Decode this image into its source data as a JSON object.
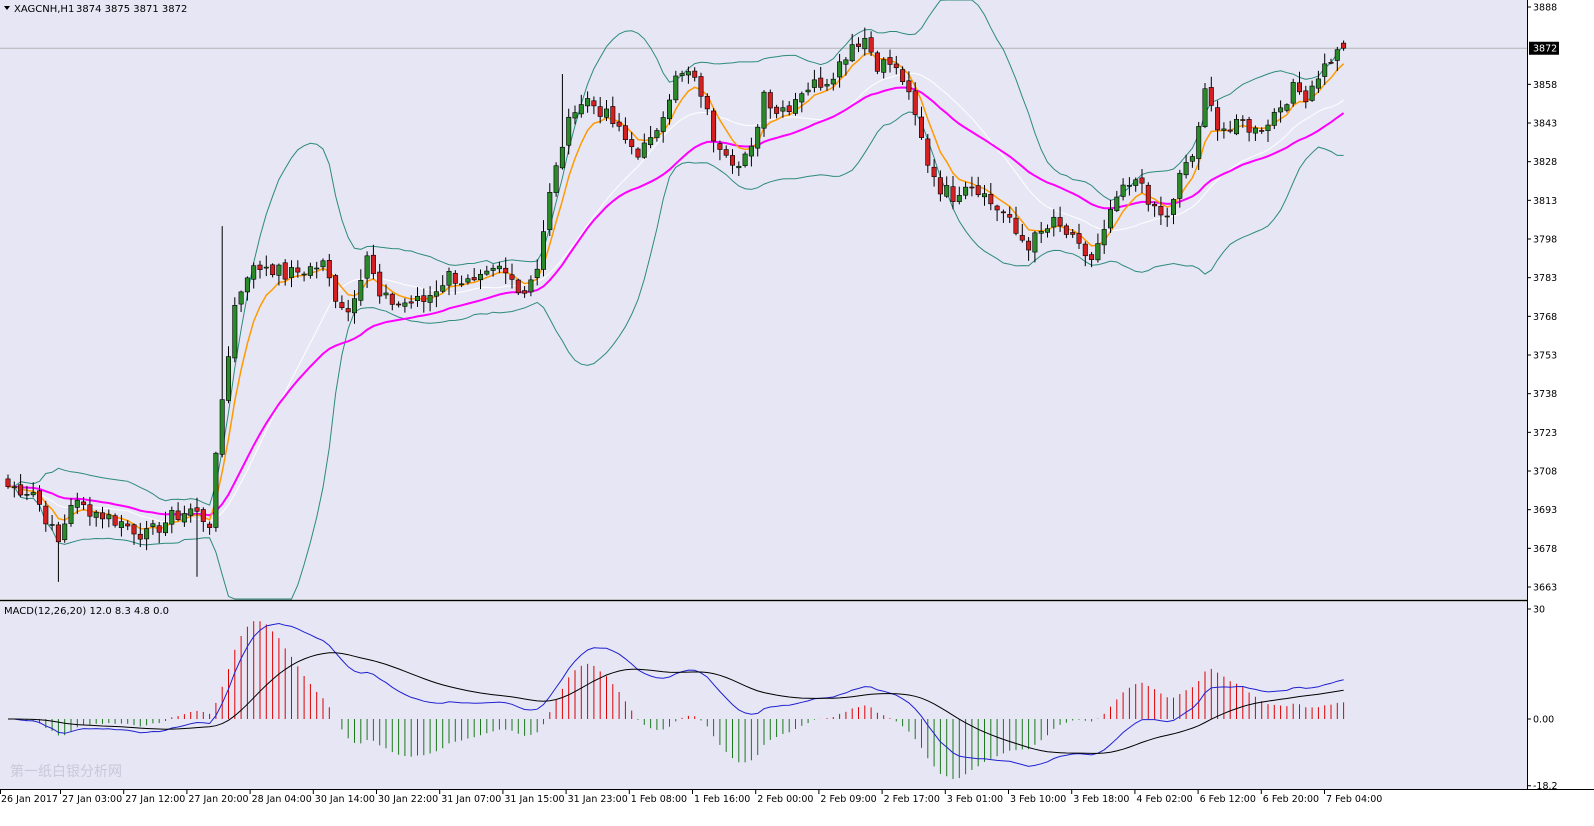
{
  "header": {
    "symbol_label": "XAGCNH,H1",
    "ohlc_text": "3874 3875 3871 3872",
    "current_price": "3872"
  },
  "macd_header": "MACD(12,26,20) 12.0 8.3 4.8 0.0",
  "watermark": "第一纸白银分析网",
  "colors": {
    "background": "#e6e6f5",
    "bull": "#2a8a2a",
    "bear": "#d42020",
    "wick": "#000000",
    "ma_fast": "#ff9a00",
    "ma_slow": "#ff00ff",
    "ma_mid": "#ffffff",
    "bollinger": "#2d8a7a",
    "macd_main": "#2020d0",
    "macd_signal": "#000000",
    "hist_pos": "#e00000",
    "hist_neg": "#1a7a1a"
  },
  "chart_data": [
    {
      "type": "candlestick",
      "name": "price",
      "y_axis_ticks": [
        "3888",
        "3872",
        "3858",
        "3843",
        "3828",
        "3813",
        "3798",
        "3783",
        "3768",
        "3753",
        "3738",
        "3723",
        "3708",
        "3693",
        "3678",
        "3663"
      ],
      "x_axis_ticks": [
        "26 Jan 2017",
        "27 Jan 03:00",
        "27 Jan 12:00",
        "27 Jan 20:00",
        "28 Jan 04:00",
        "30 Jan 14:00",
        "30 Jan 22:00",
        "31 Jan 07:00",
        "31 Jan 15:00",
        "31 Jan 23:00",
        "1 Feb 08:00",
        "1 Feb 16:00",
        "2 Feb 00:00",
        "2 Feb 09:00",
        "2 Feb 17:00",
        "3 Feb 01:00",
        "3 Feb 10:00",
        "3 Feb 18:00",
        "4 Feb 02:00",
        "6 Feb 12:00",
        "6 Feb 20:00",
        "7 Feb 04:00"
      ],
      "ylim": [
        3660,
        3888
      ],
      "anchor_closes": [
        [
          0,
          3702
        ],
        [
          4,
          3700
        ],
        [
          8,
          3680
        ],
        [
          10,
          3696
        ],
        [
          14,
          3692
        ],
        [
          18,
          3688
        ],
        [
          22,
          3683
        ],
        [
          26,
          3690
        ],
        [
          29,
          3693
        ],
        [
          32,
          3688
        ],
        [
          34,
          3736
        ],
        [
          36,
          3772
        ],
        [
          38,
          3785
        ],
        [
          41,
          3788
        ],
        [
          44,
          3784
        ],
        [
          47,
          3786
        ],
        [
          50,
          3788
        ],
        [
          52,
          3776
        ],
        [
          54,
          3770
        ],
        [
          57,
          3792
        ],
        [
          59,
          3775
        ],
        [
          62,
          3773
        ],
        [
          66,
          3774
        ],
        [
          70,
          3784
        ],
        [
          74,
          3780
        ],
        [
          78,
          3786
        ],
        [
          82,
          3778
        ],
        [
          84,
          3788
        ],
        [
          86,
          3815
        ],
        [
          88,
          3835
        ],
        [
          90,
          3850
        ],
        [
          92,
          3852
        ],
        [
          94,
          3848
        ],
        [
          96,
          3843
        ],
        [
          98,
          3836
        ],
        [
          100,
          3832
        ],
        [
          102,
          3835
        ],
        [
          104,
          3848
        ],
        [
          106,
          3860
        ],
        [
          108,
          3862
        ],
        [
          110,
          3855
        ],
        [
          112,
          3838
        ],
        [
          114,
          3833
        ],
        [
          116,
          3826
        ],
        [
          118,
          3832
        ],
        [
          120,
          3855
        ],
        [
          122,
          3848
        ],
        [
          124,
          3850
        ],
        [
          126,
          3856
        ],
        [
          128,
          3858
        ],
        [
          130,
          3860
        ],
        [
          132,
          3866
        ],
        [
          134,
          3874
        ],
        [
          136,
          3876
        ],
        [
          138,
          3866
        ],
        [
          140,
          3866
        ],
        [
          142,
          3860
        ],
        [
          144,
          3845
        ],
        [
          146,
          3828
        ],
        [
          148,
          3818
        ],
        [
          150,
          3815
        ],
        [
          152,
          3820
        ],
        [
          154,
          3818
        ],
        [
          156,
          3812
        ],
        [
          158,
          3808
        ],
        [
          160,
          3800
        ],
        [
          162,
          3796
        ],
        [
          164,
          3800
        ],
        [
          166,
          3804
        ],
        [
          168,
          3800
        ],
        [
          170,
          3794
        ],
        [
          172,
          3790
        ],
        [
          174,
          3800
        ],
        [
          176,
          3814
        ],
        [
          178,
          3818
        ],
        [
          180,
          3820
        ],
        [
          182,
          3808
        ],
        [
          184,
          3806
        ],
        [
          186,
          3822
        ],
        [
          188,
          3830
        ],
        [
          190,
          3854
        ],
        [
          192,
          3843
        ],
        [
          194,
          3840
        ],
        [
          196,
          3843
        ],
        [
          198,
          3840
        ],
        [
          200,
          3844
        ],
        [
          202,
          3850
        ],
        [
          204,
          3856
        ],
        [
          206,
          3854
        ],
        [
          208,
          3862
        ],
        [
          210,
          3868
        ],
        [
          212,
          3872
        ]
      ],
      "series": [
        {
          "name": "MA fast",
          "kind": "line"
        },
        {
          "name": "MA slow",
          "kind": "line"
        },
        {
          "name": "Bollinger upper",
          "kind": "line"
        },
        {
          "name": "Bollinger lower",
          "kind": "line"
        }
      ]
    },
    {
      "type": "bar",
      "name": "MACD(12,26,20)",
      "parameters": [
        12,
        26,
        20
      ],
      "values_shown": [
        12.0,
        8.3,
        4.8,
        0.0
      ],
      "y_axis_ticks": [
        "30",
        "0.00",
        "-18.2"
      ],
      "ylim": [
        -18.2,
        30
      ]
    }
  ]
}
